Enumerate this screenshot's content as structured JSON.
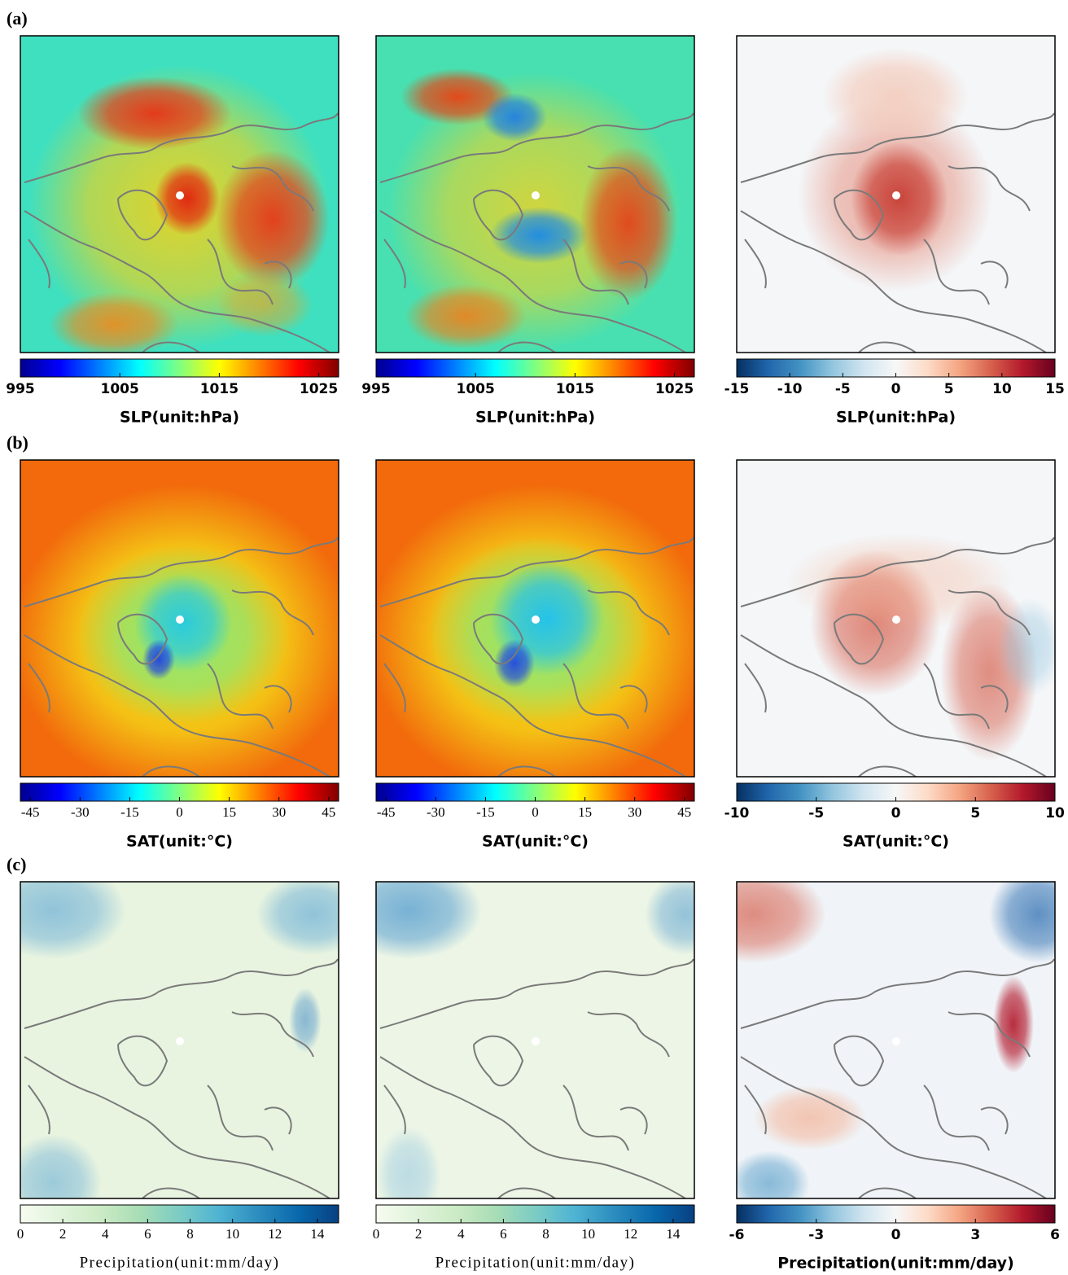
{
  "rows": [
    {
      "label": "(a)",
      "panels": [
        {
          "colorbar": {
            "label": "SLP(unit:hPa)",
            "lim": [
              995,
              1027
            ],
            "ticks": [
              995,
              1005,
              1015,
              1025
            ],
            "colors": [
              "#00008f",
              "#0000ff",
              "#0080ff",
              "#00ffff",
              "#80ff80",
              "#ffff00",
              "#ff8000",
              "#ff0000",
              "#800000"
            ]
          }
        },
        {
          "colorbar": {
            "label": "SLP(unit:hPa)",
            "lim": [
              995,
              1027
            ],
            "ticks": [
              995,
              1005,
              1015,
              1025
            ],
            "colors": [
              "#00008f",
              "#0000ff",
              "#0080ff",
              "#00ffff",
              "#80ff80",
              "#ffff00",
              "#ff8000",
              "#ff0000",
              "#800000"
            ]
          }
        },
        {
          "colorbar": {
            "label": "SLP(unit:hPa)",
            "lim": [
              -15,
              15
            ],
            "ticks": [
              -15,
              -10,
              -5,
              0,
              5,
              10,
              15
            ],
            "colors": [
              "#053061",
              "#2166ac",
              "#4393c3",
              "#92c5de",
              "#d1e5f0",
              "#f7f7f7",
              "#fddbc7",
              "#f4a582",
              "#d6604d",
              "#b2182b",
              "#67001f"
            ]
          }
        }
      ]
    },
    {
      "label": "(b)",
      "panels": [
        {
          "colorbar": {
            "label": "SAT(unit:°C)",
            "lim": [
              -48,
              48
            ],
            "ticks": [
              -45,
              -30,
              -15,
              0,
              15,
              30,
              45
            ],
            "colors": [
              "#00008f",
              "#0000ff",
              "#0080ff",
              "#00ffff",
              "#80ff80",
              "#ffff00",
              "#ff8000",
              "#ff0000",
              "#800000"
            ]
          }
        },
        {
          "colorbar": {
            "label": "SAT(unit:°C)",
            "lim": [
              -48,
              48
            ],
            "ticks": [
              -45,
              -30,
              -15,
              0,
              15,
              30,
              45
            ],
            "colors": [
              "#00008f",
              "#0000ff",
              "#0080ff",
              "#00ffff",
              "#80ff80",
              "#ffff00",
              "#ff8000",
              "#ff0000",
              "#800000"
            ]
          }
        },
        {
          "colorbar": {
            "label": "SAT(unit:°C)",
            "lim": [
              -10,
              10
            ],
            "ticks": [
              -10,
              -5,
              0,
              5,
              10
            ],
            "colors": [
              "#053061",
              "#2166ac",
              "#4393c3",
              "#92c5de",
              "#d1e5f0",
              "#f7f7f7",
              "#fddbc7",
              "#f4a582",
              "#d6604d",
              "#b2182b",
              "#67001f"
            ]
          }
        }
      ]
    },
    {
      "label": "(c)",
      "panels": [
        {
          "colorbar": {
            "label": "Precipitation(unit:mm/day)",
            "lim": [
              0,
              15
            ],
            "ticks": [
              0,
              2,
              4,
              6,
              8,
              10,
              12,
              14
            ],
            "colors": [
              "#f7fcf0",
              "#e0f3db",
              "#ccebc5",
              "#a8ddb5",
              "#7bccc4",
              "#4eb3d3",
              "#2b8cbe",
              "#0868ac",
              "#084081"
            ]
          }
        },
        {
          "colorbar": {
            "label": "Precipitation(unit:mm/day)",
            "lim": [
              0,
              15
            ],
            "ticks": [
              0,
              2,
              4,
              6,
              8,
              10,
              12,
              14
            ],
            "colors": [
              "#f7fcf0",
              "#e0f3db",
              "#ccebc5",
              "#a8ddb5",
              "#7bccc4",
              "#4eb3d3",
              "#2b8cbe",
              "#0868ac",
              "#084081"
            ]
          }
        },
        {
          "colorbar": {
            "label": "Precipitation(unit:mm/day)",
            "lim": [
              -6,
              6
            ],
            "ticks": [
              -6,
              -3,
              0,
              3,
              6
            ],
            "colors": [
              "#053061",
              "#2166ac",
              "#4393c3",
              "#92c5de",
              "#d1e5f0",
              "#f7f7f7",
              "#fddbc7",
              "#f4a582",
              "#d6604d",
              "#b2182b",
              "#67001f"
            ]
          }
        }
      ]
    }
  ]
}
